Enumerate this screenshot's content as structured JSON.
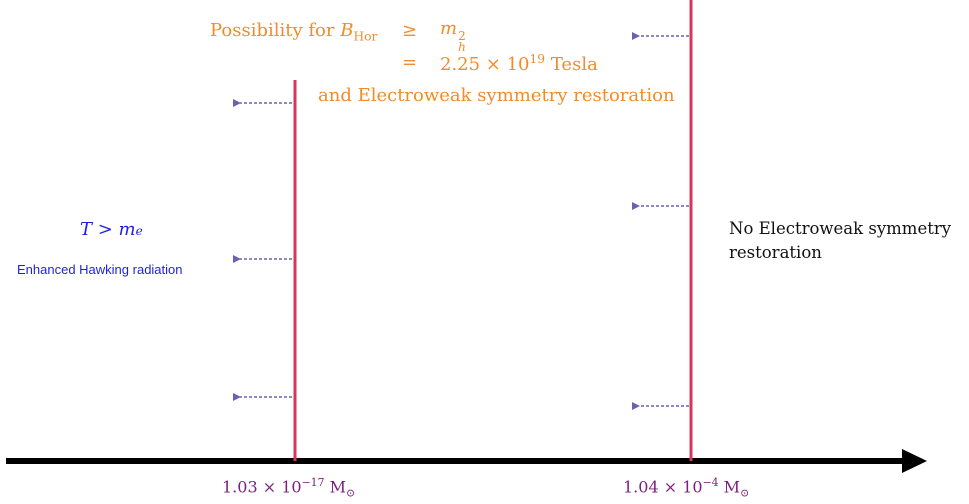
{
  "annotations": {
    "line1_prefix": "Possibility for ",
    "b_sym": "B",
    "b_sub": "Hor",
    "geq": "≥",
    "m_sym": "m",
    "m_sub": "h",
    "m_sup": "2",
    "eq": "=",
    "value_mantissa": "2.25 × 10",
    "value_exp": "19",
    "value_unit": " Tesla",
    "line3": "and Electroweak symmetry restoration",
    "t_sym": "T",
    "t_gt": " > ",
    "me_sym": "m",
    "me_sub": "e",
    "hawking": "Enhanced Hawking radiation",
    "no_ew_line1": "No Electroweak symmetry",
    "no_ew_line2": "restoration"
  },
  "axis_labels": {
    "left_mantissa": "1.03 × 10",
    "left_exp": "−17",
    "left_unit": " M",
    "left_sub": "⊙",
    "right_mantissa": "1.04 × 10",
    "right_exp": "−4",
    "right_unit": " M",
    "right_sub": "⊙"
  },
  "colors": {
    "threshold_line": "#d6365e",
    "arrow": "#6f5fb0",
    "axis": "#000000"
  }
}
